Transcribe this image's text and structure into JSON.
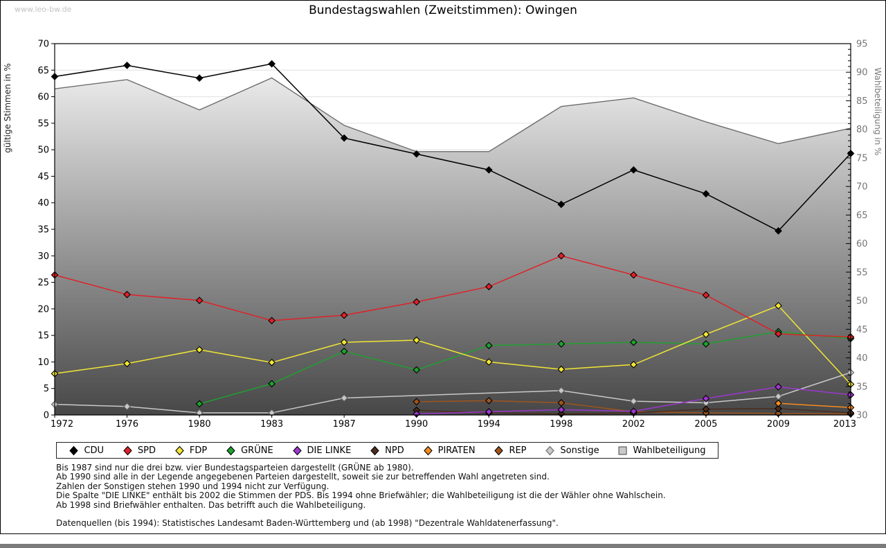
{
  "page": {
    "watermark": "www.leo-bw.de",
    "title": "Bundestagswahlen (Zweitstimmen): Owingen"
  },
  "chart_data": {
    "type": "line",
    "title": "Bundestagswahlen (Zweitstimmen): Owingen",
    "x": [
      1972,
      1976,
      1980,
      1983,
      1987,
      1990,
      1994,
      1998,
      2002,
      2005,
      2009,
      2013
    ],
    "left_axis": {
      "label": "gültige Stimmen in %",
      "min": 0,
      "max": 70,
      "step": 5
    },
    "right_axis": {
      "label": "Wahlbeteiligung in %",
      "min": 30,
      "max": 95,
      "step": 5,
      "minor_step": 1
    },
    "grid": true,
    "legend_position": "bottom",
    "series": [
      {
        "name": "CDU",
        "color": "#000000",
        "axis": "left",
        "marker": "diamond",
        "values": [
          63.8,
          65.9,
          63.5,
          66.2,
          52.2,
          49.2,
          46.2,
          39.7,
          46.2,
          41.7,
          34.7,
          49.3
        ]
      },
      {
        "name": "SPD",
        "color": "#e02128",
        "axis": "left",
        "marker": "diamond",
        "values": [
          26.4,
          22.7,
          21.6,
          17.8,
          18.8,
          21.3,
          24.2,
          30.0,
          26.4,
          22.6,
          15.3,
          14.7
        ]
      },
      {
        "name": "FDP",
        "color": "#f2e735",
        "axis": "left",
        "marker": "diamond",
        "values": [
          7.8,
          9.7,
          12.3,
          9.9,
          13.7,
          14.1,
          10.0,
          8.6,
          9.5,
          15.2,
          20.6,
          5.8
        ]
      },
      {
        "name": "GRÜNE",
        "color": "#1fa12f",
        "axis": "left",
        "marker": "diamond",
        "values": [
          null,
          null,
          2.1,
          5.9,
          12.0,
          8.5,
          13.1,
          13.4,
          13.7,
          13.4,
          15.7,
          14.4
        ]
      },
      {
        "name": "DIE LINKE",
        "color": "#9d37cf",
        "axis": "left",
        "marker": "diamond",
        "values": [
          null,
          null,
          null,
          null,
          null,
          0.2,
          0.6,
          1.0,
          0.7,
          3.1,
          5.3,
          3.8
        ]
      },
      {
        "name": "NPD",
        "color": "#4c2b1b",
        "axis": "left",
        "marker": "diamond",
        "values": [
          null,
          null,
          null,
          null,
          null,
          0.9,
          0.4,
          0.2,
          0.4,
          1.1,
          1.2,
          0.4
        ]
      },
      {
        "name": "PIRATEN",
        "color": "#f68c1e",
        "axis": "left",
        "marker": "diamond",
        "values": [
          null,
          null,
          null,
          null,
          null,
          null,
          null,
          null,
          null,
          null,
          2.2,
          1.4
        ]
      },
      {
        "name": "REP",
        "color": "#a0541c",
        "axis": "left",
        "marker": "diamond",
        "values": [
          null,
          null,
          null,
          null,
          null,
          2.5,
          2.7,
          2.3,
          0.6,
          0.4,
          0.3,
          0.2
        ]
      },
      {
        "name": "Sonstige",
        "color": "#c9c9c9",
        "axis": "left",
        "marker": "diamond",
        "marker_stroke": "#666666",
        "values": [
          2.0,
          1.6,
          0.4,
          0.4,
          3.2,
          null,
          null,
          4.6,
          2.6,
          2.3,
          3.5,
          8.0
        ]
      },
      {
        "name": "Wahlbeteiligung",
        "color": "#6d6d6d",
        "axis": "right",
        "marker": "square",
        "type": "area",
        "values": [
          87.1,
          88.7,
          83.4,
          89.0,
          80.7,
          76.1,
          76.1,
          84.0,
          85.5,
          81.3,
          77.5,
          80.2
        ]
      }
    ],
    "area_fill_top": "#fafafa",
    "area_fill_bottom": "#474747"
  },
  "footnotes": [
    "Bis 1987 sind nur die drei bzw. vier Bundestagsparteien dargestellt (GRÜNE ab 1980).",
    "Ab 1990 sind alle in der Legende angegebenen Parteien dargestellt, soweit sie zur betreffenden Wahl angetreten sind.",
    "Zahlen der Sonstigen stehen 1990 und 1994 nicht zur Verfügung.",
    "Die Spalte \"DIE LINKE\" enthält bis 2002 die Stimmen der PDS. Bis 1994 ohne Briefwähler; die Wahlbeteiligung ist die der Wähler ohne Wahlschein.",
    "Ab 1998 sind Briefwähler enthalten. Das betrifft auch die Wahlbeteiligung.",
    "",
    "Datenquellen (bis 1994): Statistisches Landesamt Baden-Württemberg und (ab 1998) \"Dezentrale Wahldatenerfassung\"."
  ]
}
